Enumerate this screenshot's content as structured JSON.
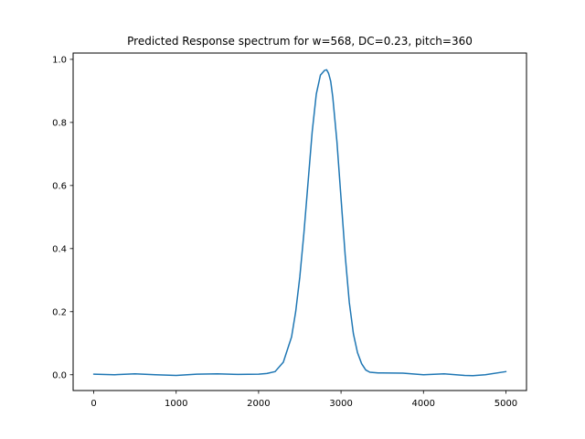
{
  "chart_data": {
    "type": "line",
    "title": "Predicted Response spectrum for w=568, DC=0.23, pitch=360",
    "xlabel": "",
    "ylabel": "",
    "xlim": [
      -250,
      5250
    ],
    "ylim": [
      -0.05,
      1.02
    ],
    "x_ticks": [
      0,
      1000,
      2000,
      3000,
      4000,
      5000
    ],
    "y_ticks": [
      0.0,
      0.2,
      0.4,
      0.6,
      0.8,
      1.0
    ],
    "x_tick_labels": [
      "0",
      "1000",
      "2000",
      "3000",
      "4000",
      "5000"
    ],
    "y_tick_labels": [
      "0.0",
      "0.2",
      "0.4",
      "0.6",
      "0.8",
      "1.0"
    ],
    "grid": false,
    "legend": "none",
    "series": [
      {
        "color": "#1f77b4",
        "x": [
          0,
          250,
          500,
          750,
          1000,
          1250,
          1500,
          1750,
          2000,
          2100,
          2200,
          2300,
          2400,
          2450,
          2500,
          2550,
          2600,
          2650,
          2700,
          2750,
          2800,
          2825,
          2850,
          2875,
          2900,
          2950,
          3000,
          3050,
          3100,
          3150,
          3200,
          3250,
          3300,
          3350,
          3400,
          3450,
          3500,
          3750,
          4000,
          4250,
          4500,
          4600,
          4750,
          5000
        ],
        "y": [
          0.002,
          0.0,
          0.003,
          0.0,
          -0.002,
          0.002,
          0.003,
          0.001,
          0.002,
          0.004,
          0.01,
          0.04,
          0.12,
          0.2,
          0.31,
          0.45,
          0.61,
          0.77,
          0.89,
          0.95,
          0.965,
          0.967,
          0.955,
          0.93,
          0.88,
          0.74,
          0.56,
          0.38,
          0.23,
          0.13,
          0.07,
          0.035,
          0.015,
          0.008,
          0.007,
          0.006,
          0.006,
          0.005,
          0.0,
          0.003,
          -0.002,
          -0.003,
          0.0,
          0.01
        ]
      }
    ]
  }
}
